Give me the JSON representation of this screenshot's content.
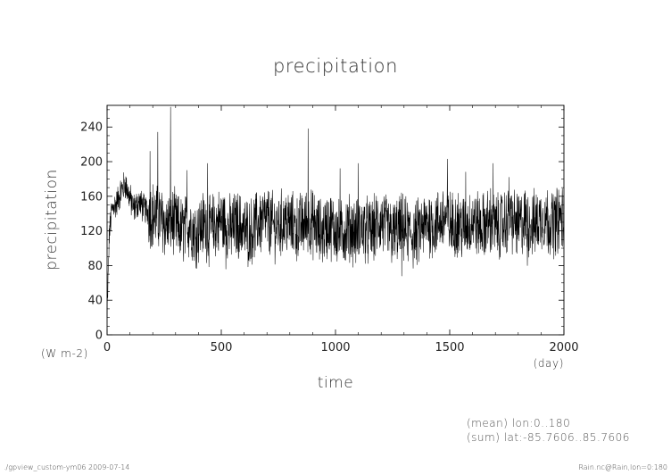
{
  "chart_data": {
    "type": "line",
    "title": "precipitation",
    "xlabel": "time",
    "ylabel": "precipitation",
    "x_unit": "(day)",
    "y_unit": "(W m-2)",
    "xlim": [
      0,
      2000
    ],
    "ylim": [
      0,
      265
    ],
    "x_ticks": [
      0,
      500,
      1000,
      1500,
      2000
    ],
    "y_ticks": [
      0,
      40,
      80,
      120,
      160,
      200,
      240
    ],
    "grid": false,
    "legend": "none",
    "line_color": "#000000",
    "series": [
      {
        "x_step": 10,
        "values": [
          20,
          118,
          142,
          150,
          150,
          158,
          165,
          170,
          174,
          166,
          158,
          150,
          146,
          150,
          154,
          150,
          146,
          144,
          142,
          140,
          140,
          136,
          134,
          136,
          132,
          130,
          126,
          128,
          132,
          130,
          128,
          124,
          122,
          120,
          122,
          126,
          128,
          124,
          120,
          118,
          122,
          124,
          128,
          126,
          122,
          120,
          124,
          126,
          128,
          130,
          132,
          130,
          128,
          124,
          122,
          124,
          126,
          128,
          126,
          124,
          122,
          120,
          118,
          120,
          122,
          126,
          128,
          130,
          132,
          134,
          132,
          130,
          128,
          126,
          124,
          126,
          128,
          130,
          132,
          130,
          128,
          126,
          124,
          122,
          124,
          126,
          128,
          130,
          132,
          130,
          128,
          126,
          122,
          120,
          118,
          120,
          124,
          128,
          126,
          124,
          122,
          118,
          116,
          118,
          120,
          122,
          124,
          122,
          120,
          118,
          120,
          122,
          124,
          122,
          120,
          118,
          120,
          122,
          126,
          128,
          130,
          128,
          124,
          122,
          118,
          116,
          118,
          120,
          122,
          124,
          122,
          120,
          118,
          116,
          114,
          116,
          118,
          120,
          124,
          126,
          128,
          130,
          128,
          126,
          128,
          130,
          132,
          134,
          136,
          132,
          128,
          126,
          128,
          130,
          128,
          126,
          124,
          126,
          128,
          130,
          132,
          130,
          128,
          126,
          124,
          126,
          128,
          130,
          132,
          128,
          126,
          124,
          126,
          128,
          130,
          130,
          132,
          134,
          130,
          128,
          126,
          128,
          130,
          132,
          130,
          128,
          126,
          128,
          130,
          132,
          134,
          136,
          134,
          132,
          130,
          128,
          130,
          132,
          134,
          136,
          130
        ],
        "noise_amplitude": 34,
        "spikes": [
          {
            "x": 278,
            "y": 263
          },
          {
            "x": 188,
            "y": 212
          },
          {
            "x": 222,
            "y": 234
          },
          {
            "x": 350,
            "y": 190
          },
          {
            "x": 440,
            "y": 198
          },
          {
            "x": 880,
            "y": 238
          },
          {
            "x": 1020,
            "y": 192
          },
          {
            "x": 1100,
            "y": 198
          },
          {
            "x": 1490,
            "y": 203
          },
          {
            "x": 1570,
            "y": 188
          },
          {
            "x": 1690,
            "y": 198
          },
          {
            "x": 1760,
            "y": 182
          },
          {
            "x": 1290,
            "y": 68
          },
          {
            "x": 520,
            "y": 76
          },
          {
            "x": 1840,
            "y": 80
          }
        ]
      }
    ]
  },
  "annotations": {
    "line1": "(mean) lon:0..180",
    "line2": "(sum) lat:-85.7606..85.7606"
  },
  "footer": {
    "left": "./gpview_custom-ym06  2009-07-14",
    "right": "Rain.nc@Rain,lon=0:180"
  }
}
